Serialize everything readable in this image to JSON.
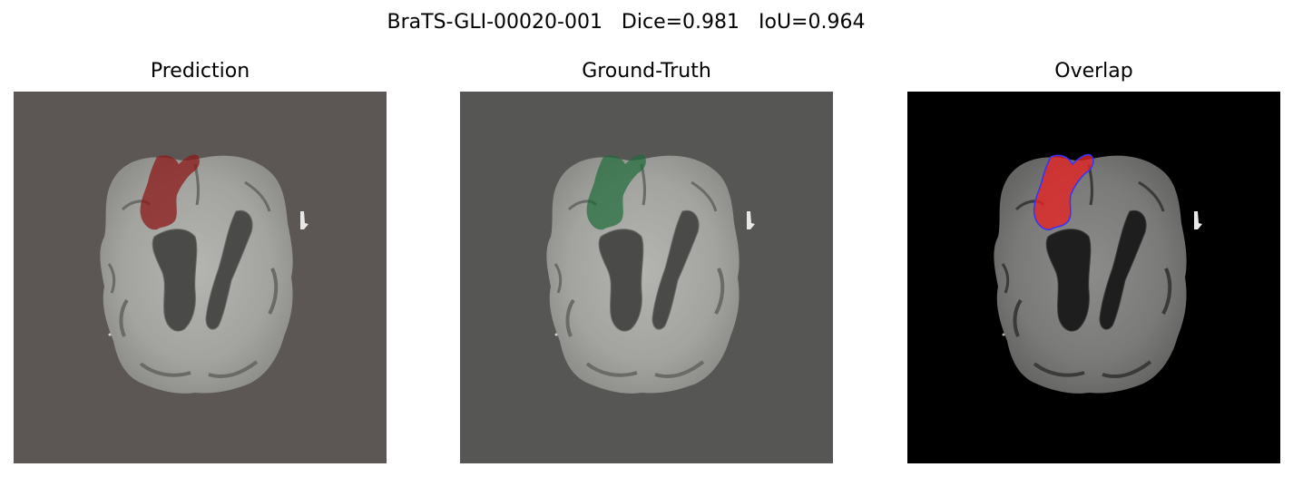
{
  "figure": {
    "suptitle": "BraTS-GLI-00020-001   Dice=0.981   IoU=0.964"
  },
  "panels": [
    {
      "title": "Prediction",
      "background": "#5c5754",
      "mask_color": "#8b1a1a"
    },
    {
      "title": "Ground-Truth",
      "background": "#565654",
      "mask_color": "#1f6b3a"
    },
    {
      "title": "Overlap",
      "background": "#000000",
      "mask_color": "#e32626",
      "edge_color": "#3333ff"
    }
  ],
  "colors": {
    "brain_tissue": "#a8a8a4",
    "ventricle": "#3e3e3e",
    "gyri_dark": "#6a6a66"
  }
}
